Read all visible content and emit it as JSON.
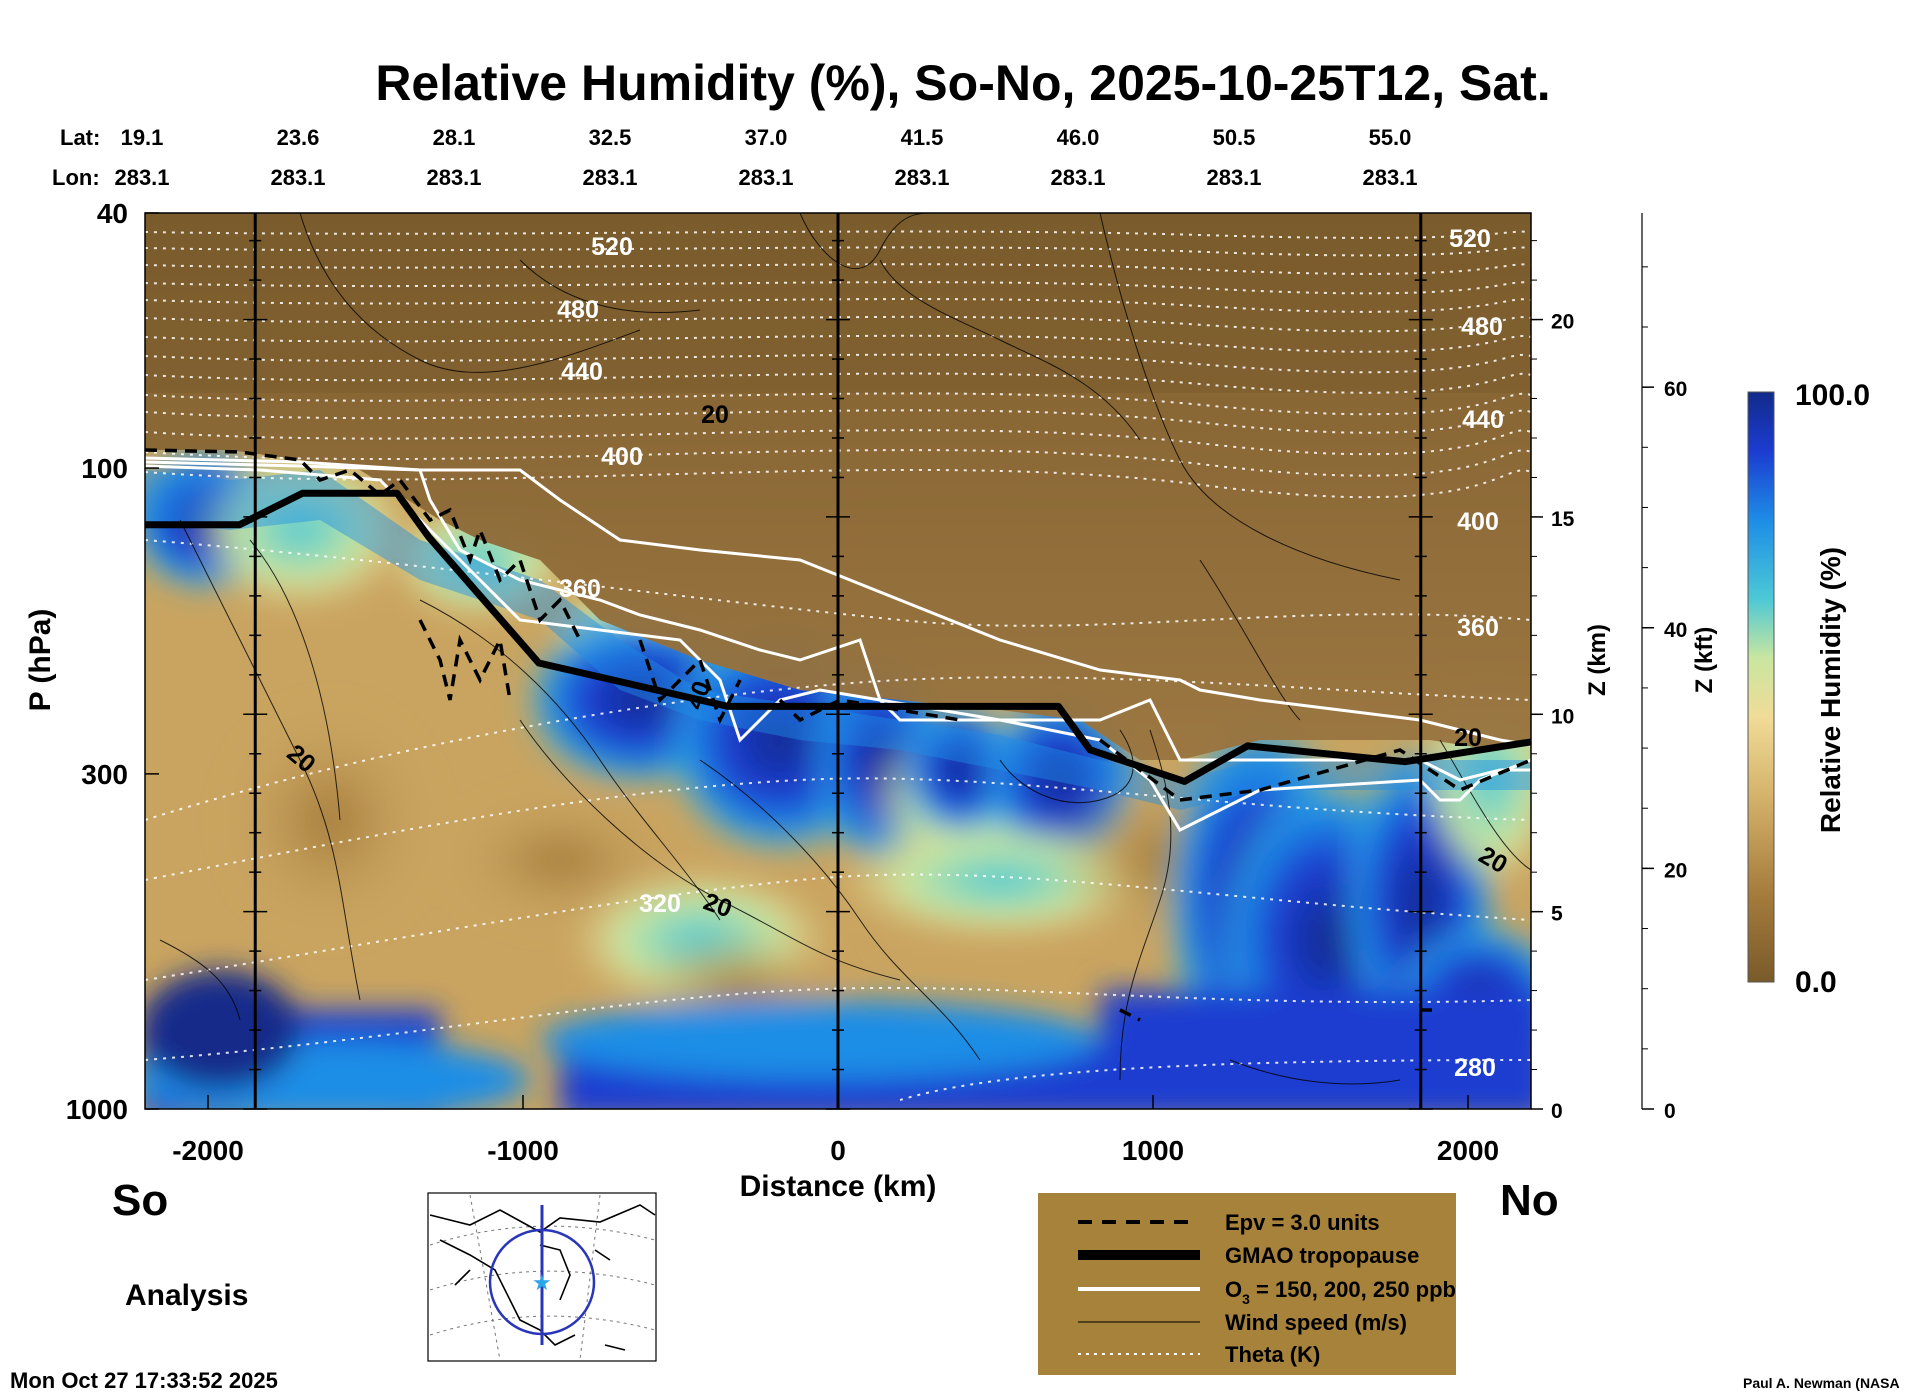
{
  "chart_data": {
    "type": "heatmap",
    "title": "Relative Humidity (%), So-No, 2025-10-25T12, Sat.",
    "variable": "Relative Humidity (%)",
    "xlabel": "Distance (km)",
    "ylabel": "P (hPa)",
    "z_km_label": "Z (km)",
    "z_kft_label": "Z (kft)",
    "xlim": [
      -2200,
      2200
    ],
    "ylim_hpa": [
      1000,
      40
    ],
    "x_ticks": [
      "-2000",
      "-1000",
      "0",
      "1000",
      "2000"
    ],
    "p_ticks": [
      "40",
      "100",
      "300",
      "1000"
    ],
    "z_km_ticks": [
      "0",
      "5",
      "10",
      "15",
      "20"
    ],
    "z_kft_ticks": [
      "0",
      "20",
      "40",
      "60"
    ],
    "colorbar": {
      "label": "Relative Humidity (%)",
      "min": "0.0",
      "max": "100.0",
      "colors": [
        "#7a5a2a",
        "#a57c3c",
        "#d6b46c",
        "#f0dc98",
        "#c8e6a0",
        "#4cc8d6",
        "#1e8ee6",
        "#1c3cd0",
        "#122a8a"
      ]
    },
    "lat_label": "Lat:",
    "lon_label": "Lon:",
    "lats": [
      "19.1",
      "23.6",
      "28.1",
      "32.5",
      "37.0",
      "41.5",
      "46.0",
      "50.5",
      "55.0"
    ],
    "lons": [
      "283.1",
      "283.1",
      "283.1",
      "283.1",
      "283.1",
      "283.1",
      "283.1",
      "283.1",
      "283.1"
    ],
    "theta_labels": [
      "520",
      "480",
      "440",
      "400",
      "360",
      "320",
      "520",
      "480",
      "440",
      "400",
      "360",
      "280"
    ],
    "wind_labels": [
      "20",
      "20",
      "20",
      "40",
      "20",
      "20"
    ],
    "tropopause_z_km": [
      14.8,
      14.8,
      15.6,
      15.6,
      14.5,
      11.3,
      10.2,
      10.2,
      9.1,
      8.3,
      9.2,
      8.8,
      9.3
    ],
    "tropopause_x_km": [
      -2200,
      -1900,
      -1700,
      -1400,
      -1300,
      -950,
      -350,
      700,
      800,
      1100,
      1300,
      1800,
      2200
    ]
  },
  "labels": {
    "south": "So",
    "north": "No",
    "analysis": "Analysis",
    "timestamp": "Mon Oct 27 17:33:52 2025",
    "credit": "Paul A. Newman (NASA"
  },
  "legend": {
    "epv": "Epv = 3.0 units",
    "tropopause": "GMAO tropopause",
    "o3_prefix": "O",
    "o3_sub": "3",
    "o3_suffix": " = 150, 200, 250 ppb",
    "wind": "Wind speed (m/s)",
    "theta": "Theta (K)",
    "bg_color": "#a6823a"
  }
}
